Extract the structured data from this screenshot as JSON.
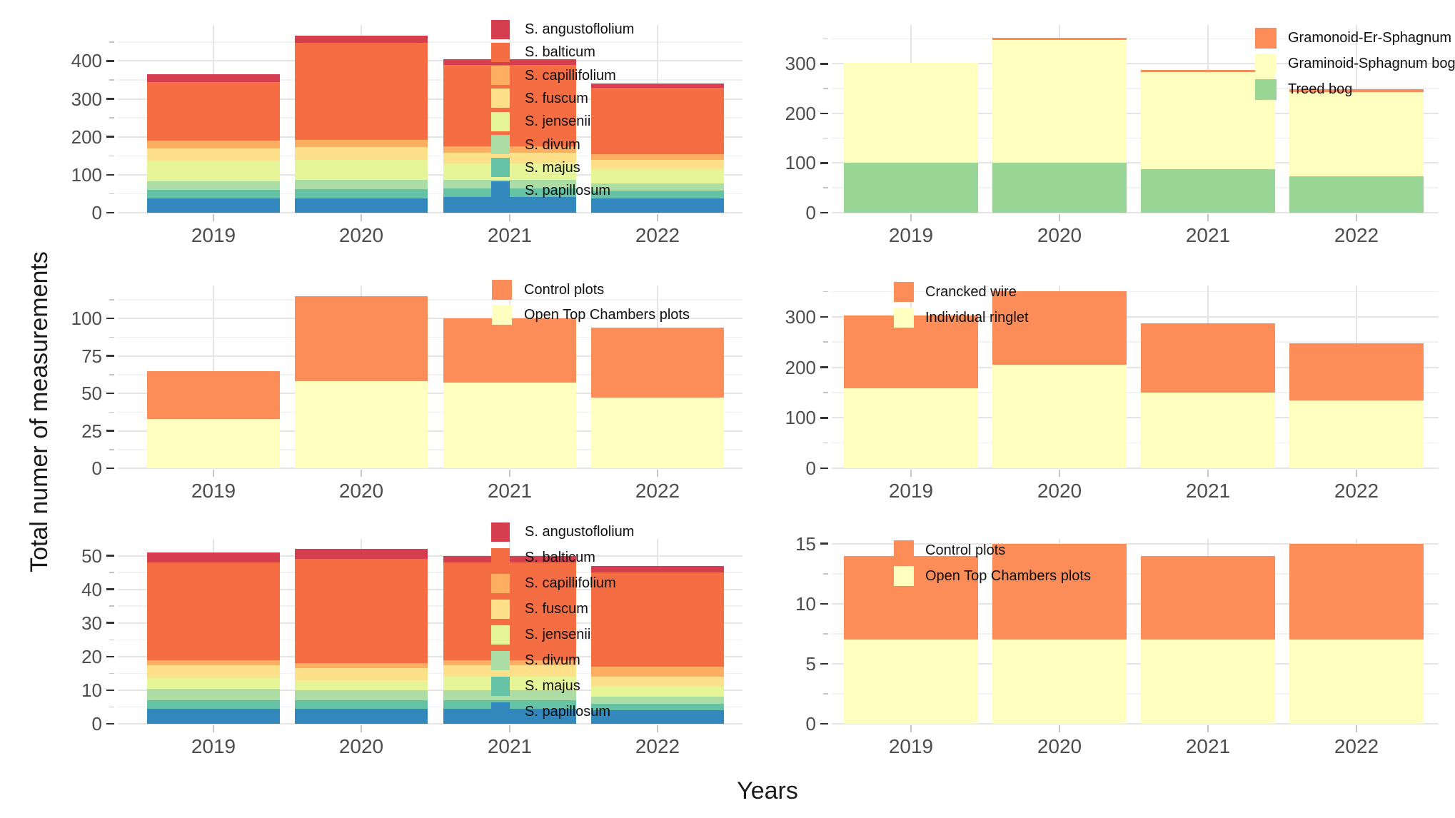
{
  "figure": {
    "y_axis_title": "Total numer of measurements",
    "x_axis_title": "Years",
    "background_color": "#ffffff",
    "grid_major_color": "#e5e5e5",
    "grid_minor_color": "#f1f1f1",
    "tick_label_color": "#4d4d4d",
    "axis_title_color": "#1a1a1a",
    "legend_text_color": "#111111"
  },
  "chart_data": [
    {
      "id": "species-all-plots",
      "type": "bar",
      "stacked": true,
      "position": "top-left",
      "categories": [
        "2019",
        "2020",
        "2021",
        "2022"
      ],
      "yticks": [
        0,
        100,
        200,
        300,
        400
      ],
      "ylim": [
        0,
        495
      ],
      "legend_position": "inside-right",
      "series": [
        {
          "name": "S. angustoflolium",
          "color": "#d53e4f",
          "values": [
            20,
            19,
            15,
            10
          ]
        },
        {
          "name": "S. balticum",
          "color": "#f46d43",
          "values": [
            155,
            256,
            215,
            175
          ]
        },
        {
          "name": "S. capillifolium",
          "color": "#fdae61",
          "values": [
            20,
            19,
            17,
            15
          ]
        },
        {
          "name": "S. fuscum",
          "color": "#fee08b",
          "values": [
            35,
            33,
            28,
            25
          ]
        },
        {
          "name": "S. jensenii",
          "color": "#e6f598",
          "values": [
            53,
            54,
            44,
            37
          ]
        },
        {
          "name": "S. divum",
          "color": "#abdda4",
          "values": [
            22,
            24,
            22,
            20
          ]
        },
        {
          "name": "S. majus",
          "color": "#66c2a5",
          "values": [
            22,
            24,
            22,
            20
          ]
        },
        {
          "name": "S. papillosum",
          "color": "#3288bd",
          "values": [
            38,
            38,
            42,
            38
          ]
        }
      ]
    },
    {
      "id": "bog-types",
      "type": "bar",
      "stacked": true,
      "position": "top-right",
      "categories": [
        "2019",
        "2020",
        "2021",
        "2022"
      ],
      "yticks": [
        0,
        100,
        200,
        300
      ],
      "ylim": [
        0,
        378
      ],
      "legend_position": "inside-right",
      "series": [
        {
          "name": "Gramonoid-Er-Sphagnum bog",
          "color": "#fc8d59",
          "values": [
            0,
            4,
            5,
            5
          ]
        },
        {
          "name": "Graminoid-Sphagnum bog",
          "color": "#ffffbf",
          "values": [
            202,
            247,
            195,
            170
          ]
        },
        {
          "name": "Treed bog",
          "color": "#99d594",
          "values": [
            100,
            101,
            88,
            73
          ]
        }
      ]
    },
    {
      "id": "treatment-plots",
      "type": "bar",
      "stacked": true,
      "position": "middle-left",
      "categories": [
        "2019",
        "2020",
        "2021",
        "2022"
      ],
      "yticks": [
        0,
        25,
        50,
        75,
        100
      ],
      "ylim": [
        0,
        122
      ],
      "legend_position": "inside-right",
      "series": [
        {
          "name": "Control plots",
          "color": "#fc8d59",
          "values": [
            32,
            57,
            43,
            47
          ]
        },
        {
          "name": "Open Top Chambers plots",
          "color": "#ffffbf",
          "values": [
            33,
            58,
            57,
            47
          ]
        }
      ]
    },
    {
      "id": "marking-methods",
      "type": "bar",
      "stacked": true,
      "position": "middle-right",
      "categories": [
        "2019",
        "2020",
        "2021",
        "2022"
      ],
      "yticks": [
        0,
        100,
        200,
        300
      ],
      "ylim": [
        0,
        362
      ],
      "legend_position": "inside-right",
      "series": [
        {
          "name": "Crancked wire",
          "color": "#fc8d59",
          "values": [
            144,
            145,
            137,
            112
          ]
        },
        {
          "name": "Individual ringlet",
          "color": "#ffffbf",
          "values": [
            158,
            205,
            150,
            135
          ]
        }
      ]
    },
    {
      "id": "species-subset",
      "type": "bar",
      "stacked": true,
      "position": "bottom-left",
      "categories": [
        "2019",
        "2020",
        "2021",
        "2022"
      ],
      "yticks": [
        0,
        10,
        20,
        30,
        40,
        50
      ],
      "ylim": [
        0,
        55
      ],
      "legend_position": "inside-right",
      "series": [
        {
          "name": "S. angustoflolium",
          "color": "#d53e4f",
          "values": [
            3,
            3,
            2,
            2
          ]
        },
        {
          "name": "S. balticum",
          "color": "#f46d43",
          "values": [
            29,
            31,
            29,
            28
          ]
        },
        {
          "name": "S. capillifolium",
          "color": "#fdae61",
          "values": [
            1.5,
            1.5,
            1.5,
            3
          ]
        },
        {
          "name": "S. fuscum",
          "color": "#fee08b",
          "values": [
            4,
            3.5,
            3.5,
            3
          ]
        },
        {
          "name": "S. jensenii",
          "color": "#e6f598",
          "values": [
            3,
            3,
            4,
            3
          ]
        },
        {
          "name": "S. divum",
          "color": "#abdda4",
          "values": [
            3.5,
            3,
            3,
            2
          ]
        },
        {
          "name": "S. majus",
          "color": "#66c2a5",
          "values": [
            2.5,
            2.5,
            2.5,
            2
          ]
        },
        {
          "name": "S. papillosum",
          "color": "#3288bd",
          "values": [
            4.5,
            4.5,
            4.5,
            4
          ]
        }
      ]
    },
    {
      "id": "treatment-plots-subset",
      "type": "bar",
      "stacked": true,
      "position": "bottom-right",
      "categories": [
        "2019",
        "2020",
        "2021",
        "2022"
      ],
      "yticks": [
        0,
        5,
        10,
        15
      ],
      "ylim": [
        0,
        15.4
      ],
      "legend_position": "inside-right",
      "series": [
        {
          "name": "Control plots",
          "color": "#fc8d59",
          "values": [
            7,
            8,
            7,
            8
          ]
        },
        {
          "name": "Open Top Chambers plots",
          "color": "#ffffbf",
          "values": [
            7,
            7,
            7,
            7
          ]
        }
      ]
    }
  ]
}
